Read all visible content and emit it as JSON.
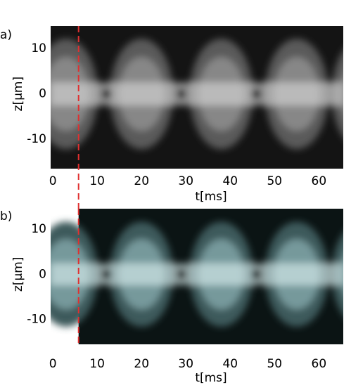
{
  "chart_data": [
    {
      "type": "image",
      "panel_label": "a)",
      "x_label": "t[ms]",
      "y_label": "z[µm]",
      "xlim": [
        -0.5,
        65.5
      ],
      "xticks": [
        0,
        10,
        20,
        30,
        40,
        50,
        60
      ],
      "ylim": [
        -16.5,
        15
      ],
      "yticks": [
        10,
        0,
        -10
      ],
      "vline": 5.8,
      "vline_color": "#e03030"
    },
    {
      "type": "image",
      "panel_label": "b)",
      "x_label": "t[ms]",
      "y_label": "z[µm]",
      "xlim": [
        -0.5,
        65.5
      ],
      "xticks": [
        0,
        10,
        20,
        30,
        40,
        50,
        60
      ],
      "ylim": [
        -15.5,
        14.5
      ],
      "yticks": [
        10,
        0,
        -10
      ],
      "vline": 5.8,
      "vline_color": "#e03030"
    }
  ]
}
